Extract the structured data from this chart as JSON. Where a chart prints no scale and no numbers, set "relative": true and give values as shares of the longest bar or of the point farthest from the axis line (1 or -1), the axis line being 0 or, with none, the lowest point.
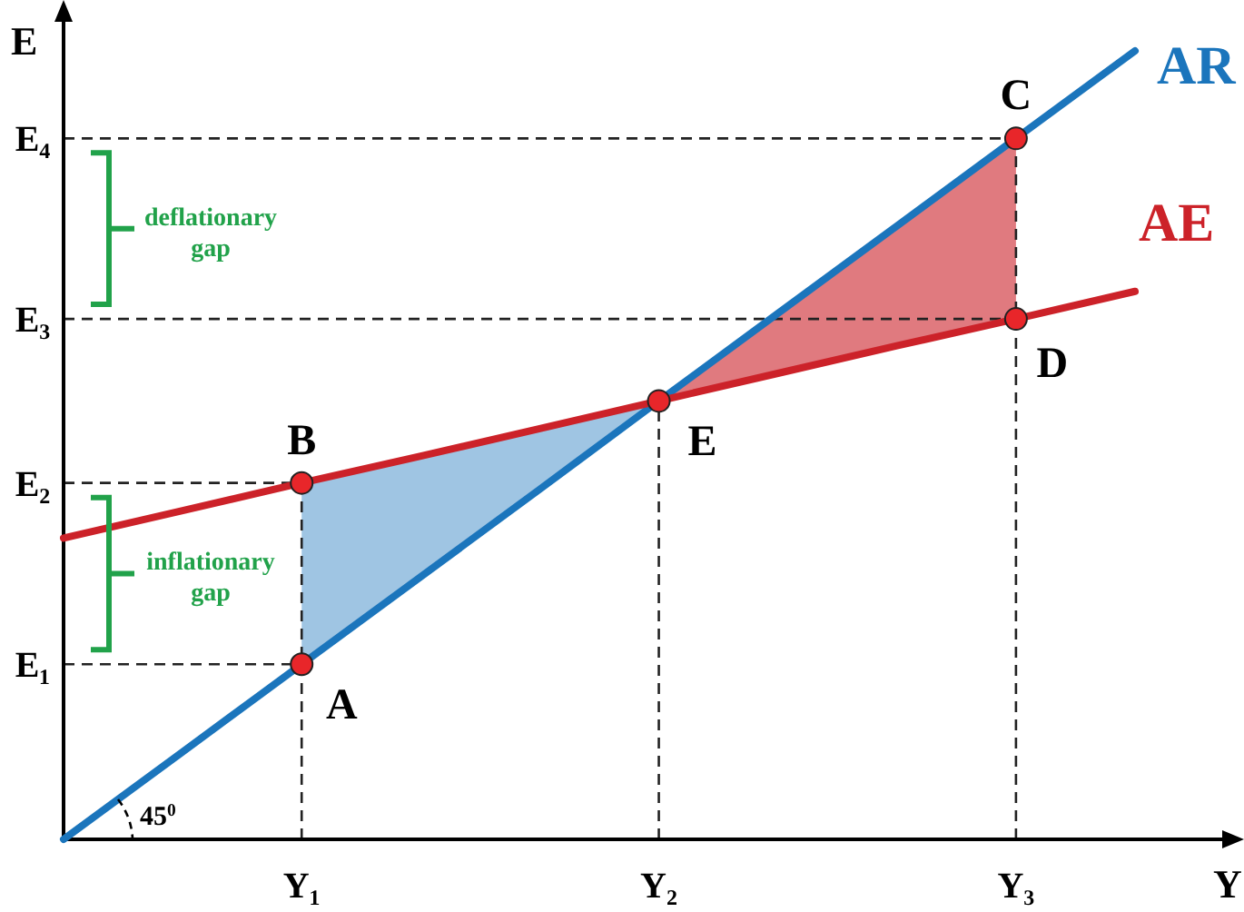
{
  "chart_data": {
    "type": "line",
    "relative": true,
    "xlabel": "Y",
    "ylabel": "E",
    "categories": [
      null,
      null,
      "Y₁",
      null,
      null,
      "Y₂",
      null,
      null,
      "Y₃",
      null
    ],
    "series": [
      {
        "name": "AR",
        "color": "#1b75bc",
        "values": [
          0,
          0.111,
          0.222,
          0.333,
          0.444,
          0.556,
          0.667,
          0.778,
          0.889,
          1
        ]
      },
      {
        "name": "AE",
        "color": "#cc2229",
        "values": [
          0.382,
          0.417,
          0.452,
          0.486,
          0.521,
          0.556,
          0.591,
          0.626,
          0.66,
          0.695
        ]
      },
      {
        "type": "scatter",
        "color": "#e8262a",
        "marker": "circle",
        "values": [
          null,
          null,
          0.222,
          null,
          null,
          0.556,
          null,
          null,
          0.66,
          null
        ]
      },
      {
        "type": "scatter",
        "color": "#e8262a",
        "marker": "circle",
        "values": [
          null,
          null,
          0.452,
          null,
          null,
          null,
          null,
          null,
          0.889,
          null
        ]
      }
    ],
    "annotations": [
      "45$^{0}$",
      "deflationary gap",
      "inflationary gap",
      {
        "text": "A",
        "x": "Y₁",
        "y": 0.222
      },
      {
        "text": "B",
        "x": "Y₁",
        "y": 0.452
      },
      {
        "text": "E",
        "x": "Y₂",
        "y": 0.556
      },
      {
        "text": "C",
        "x": "Y₃",
        "y": 0.889
      },
      {
        "text": "D",
        "x": "Y₃",
        "y": 0.66
      },
      "E₁",
      "E₂",
      "E₃",
      "E₄"
    ]
  }
}
